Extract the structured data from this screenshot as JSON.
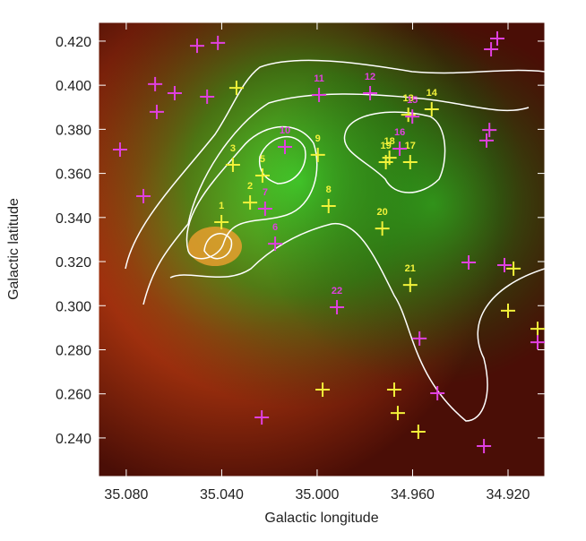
{
  "chart_data": {
    "type": "scatter",
    "xlabel": "Galactic longitude",
    "ylabel": "Galactic latitude",
    "xlim": [
      35.0916,
      34.9046
    ],
    "ylim": [
      0.2225,
      0.4285
    ],
    "xticks": [
      {
        "value": 35.08,
        "label": "35.080"
      },
      {
        "value": 35.04,
        "label": "35.040"
      },
      {
        "value": 35.0,
        "label": "35.000"
      },
      {
        "value": 34.96,
        "label": "34.960"
      },
      {
        "value": 34.92,
        "label": "34.920"
      }
    ],
    "yticks": [
      {
        "value": 0.24,
        "label": "0.240"
      },
      {
        "value": 0.26,
        "label": "0.260"
      },
      {
        "value": 0.28,
        "label": "0.280"
      },
      {
        "value": 0.3,
        "label": "0.300"
      },
      {
        "value": 0.32,
        "label": "0.320"
      },
      {
        "value": 0.34,
        "label": "0.340"
      },
      {
        "value": 0.36,
        "label": "0.360"
      },
      {
        "value": 0.38,
        "label": "0.380"
      },
      {
        "value": 0.4,
        "label": "0.400"
      },
      {
        "value": 0.42,
        "label": "0.420"
      }
    ],
    "series": [
      {
        "color": "#f2f23a",
        "x": [
          35.0338,
          35.0353,
          35.0229,
          35.0281,
          35.0401,
          34.9997,
          34.9952,
          34.9727,
          34.9712,
          34.9697,
          34.961,
          34.9618,
          34.952,
          34.961,
          34.9977,
          34.9677,
          34.9662,
          34.9576,
          34.9177,
          34.92,
          34.9076
        ],
        "y": [
          0.3988,
          0.3639,
          0.359,
          0.3468,
          0.3379,
          0.3684,
          0.3452,
          0.335,
          0.3651,
          0.3671,
          0.3651,
          0.3866,
          0.3891,
          0.3094,
          0.2619,
          0.2619,
          0.2513,
          0.2428,
          0.3168,
          0.2977,
          0.2895
        ],
        "labels": [
          null,
          "3",
          "5",
          "2",
          "1",
          "9",
          "8",
          "20",
          "19",
          "18",
          "17",
          "13",
          "14",
          "21",
          null,
          null,
          null,
          null,
          null,
          null,
          null
        ]
      },
      {
        "color": "#e040e0",
        "x": [
          35.0826,
          35.0728,
          35.0679,
          35.0672,
          35.0597,
          35.0461,
          35.0503,
          35.0416,
          35.0135,
          35.0218,
          35.0176,
          34.9992,
          34.9778,
          34.9601,
          34.9654,
          34.9917,
          34.9571,
          34.9496,
          34.9365,
          34.9215,
          34.9278,
          34.929,
          34.9271,
          34.9245,
          34.9076,
          34.9301,
          35.0232
        ],
        "y": [
          0.3708,
          0.3497,
          0.4005,
          0.3879,
          0.3964,
          0.3948,
          0.4179,
          0.4192,
          0.372,
          0.344,
          0.3281,
          0.3956,
          0.3964,
          0.3858,
          0.3712,
          0.2993,
          0.2851,
          0.2603,
          0.3196,
          0.3184,
          0.3797,
          0.3749,
          0.4163,
          0.4212,
          0.2834,
          0.2363,
          0.2493
        ],
        "labels": [
          null,
          null,
          null,
          null,
          null,
          null,
          null,
          null,
          "10",
          "7",
          "6",
          "11",
          "12",
          "15",
          "16",
          "22",
          null,
          null,
          null,
          null,
          null,
          null,
          null,
          null,
          null,
          null,
          null
        ]
      }
    ]
  }
}
